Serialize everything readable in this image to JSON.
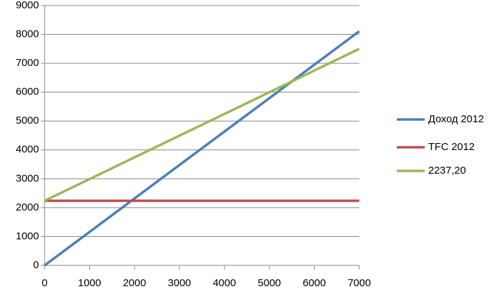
{
  "chart_data": {
    "type": "line",
    "x": [
      0,
      7000
    ],
    "series": [
      {
        "name": "Доход 2012",
        "color": "#4a7ebb",
        "values": [
          0,
          8110
        ]
      },
      {
        "name": "TFC 2012",
        "color": "#be4b48",
        "values": [
          2237.2,
          2237.2
        ]
      },
      {
        "name": "2237,20",
        "color": "#98b954",
        "values": [
          2237.2,
          7500
        ]
      }
    ],
    "xlim": [
      0,
      7000
    ],
    "xticks": [
      0,
      1000,
      2000,
      3000,
      4000,
      5000,
      6000,
      7000
    ],
    "ylim": [
      0,
      9000
    ],
    "yticks": [
      0,
      1000,
      2000,
      3000,
      4000,
      5000,
      6000,
      7000,
      8000,
      9000
    ],
    "grid": true,
    "legend": "right"
  }
}
